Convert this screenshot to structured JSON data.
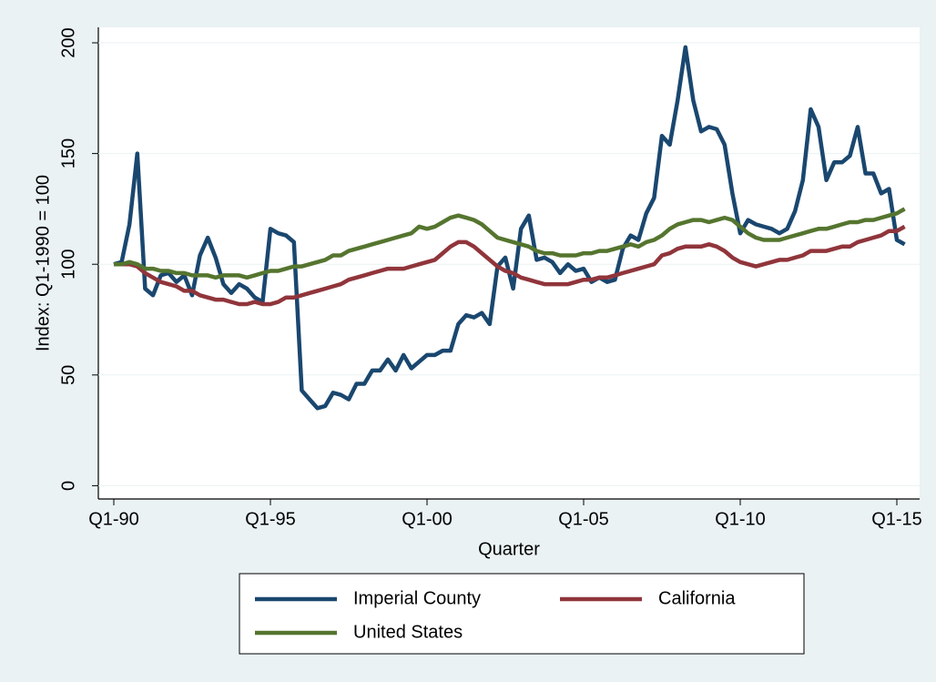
{
  "chart_data": {
    "type": "line",
    "y_label": "Index: Q1-1990 = 100",
    "x_label": "Quarter",
    "categories": [
      "Q1-90",
      null,
      null,
      null,
      null,
      null,
      null,
      null,
      null,
      null,
      null,
      null,
      null,
      null,
      null,
      null,
      null,
      null,
      null,
      null,
      "Q1-95",
      null,
      null,
      null,
      null,
      null,
      null,
      null,
      null,
      null,
      null,
      null,
      null,
      null,
      null,
      null,
      null,
      null,
      null,
      null,
      "Q1-00",
      null,
      null,
      null,
      null,
      null,
      null,
      null,
      null,
      null,
      null,
      null,
      null,
      null,
      null,
      null,
      null,
      null,
      null,
      null,
      "Q1-05",
      null,
      null,
      null,
      null,
      null,
      null,
      null,
      null,
      null,
      null,
      null,
      null,
      null,
      null,
      null,
      null,
      null,
      null,
      null,
      "Q1-10",
      null,
      null,
      null,
      null,
      null,
      null,
      null,
      null,
      null,
      null,
      null,
      null,
      null,
      null,
      null,
      null,
      null,
      null,
      null,
      "Q1-15",
      null
    ],
    "series": [
      {
        "name": "Imperial County",
        "color": "#1a476f",
        "values": [
          100,
          101,
          118,
          150,
          89,
          86,
          95,
          96,
          92,
          95,
          86,
          104,
          112,
          103,
          91,
          87,
          91,
          89,
          85,
          83,
          116,
          114,
          113,
          110,
          43,
          39,
          35,
          36,
          42,
          41,
          39,
          46,
          46,
          52,
          52,
          57,
          52,
          59,
          53,
          56,
          59,
          59,
          61,
          61,
          73,
          77,
          76,
          78,
          73,
          99,
          103,
          89,
          116,
          122,
          102,
          103,
          101,
          96,
          100,
          97,
          98,
          92,
          94,
          92,
          93,
          107,
          113,
          111,
          123,
          130,
          158,
          154,
          174,
          198,
          174,
          160,
          162,
          161,
          154,
          132,
          114,
          120,
          118,
          117,
          116,
          114,
          116,
          124,
          138,
          170,
          162,
          138,
          146,
          146,
          149,
          162,
          141,
          141,
          132,
          134,
          111,
          109
        ]
      },
      {
        "name": "California",
        "color": "#90353b",
        "values": [
          100,
          100,
          100,
          99,
          96,
          94,
          92,
          91,
          90,
          88,
          88,
          86,
          85,
          84,
          84,
          83,
          82,
          82,
          83,
          82,
          82,
          83,
          85,
          85,
          86,
          87,
          88,
          89,
          90,
          91,
          93,
          94,
          95,
          96,
          97,
          98,
          98,
          98,
          99,
          100,
          101,
          102,
          105,
          108,
          110,
          110,
          108,
          105,
          102,
          99,
          97,
          96,
          94,
          93,
          92,
          91,
          91,
          91,
          91,
          92,
          93,
          93,
          94,
          94,
          95,
          96,
          97,
          98,
          99,
          100,
          104,
          105,
          107,
          108,
          108,
          108,
          109,
          108,
          106,
          103,
          101,
          100,
          99,
          100,
          101,
          102,
          102,
          103,
          104,
          106,
          106,
          106,
          107,
          108,
          108,
          110,
          111,
          112,
          113,
          115,
          115,
          117
        ]
      },
      {
        "name": "United States",
        "color": "#55752f",
        "values": [
          100,
          100,
          101,
          100,
          98,
          98,
          97,
          97,
          96,
          96,
          95,
          95,
          95,
          94,
          95,
          95,
          95,
          94,
          95,
          96,
          97,
          97,
          98,
          99,
          99,
          100,
          101,
          102,
          104,
          104,
          106,
          107,
          108,
          109,
          110,
          111,
          112,
          113,
          114,
          117,
          116,
          117,
          119,
          121,
          122,
          121,
          120,
          118,
          115,
          112,
          111,
          110,
          109,
          108,
          106,
          105,
          105,
          104,
          104,
          104,
          105,
          105,
          106,
          106,
          107,
          108,
          109,
          108,
          110,
          111,
          113,
          116,
          118,
          119,
          120,
          120,
          119,
          120,
          121,
          120,
          117,
          114,
          112,
          111,
          111,
          111,
          112,
          113,
          114,
          115,
          116,
          116,
          117,
          118,
          119,
          119,
          120,
          120,
          121,
          122,
          123,
          125
        ]
      }
    ],
    "ylim": [
      -6,
      207
    ],
    "yticks": [
      0,
      50,
      100,
      150,
      200
    ],
    "grid": true
  }
}
